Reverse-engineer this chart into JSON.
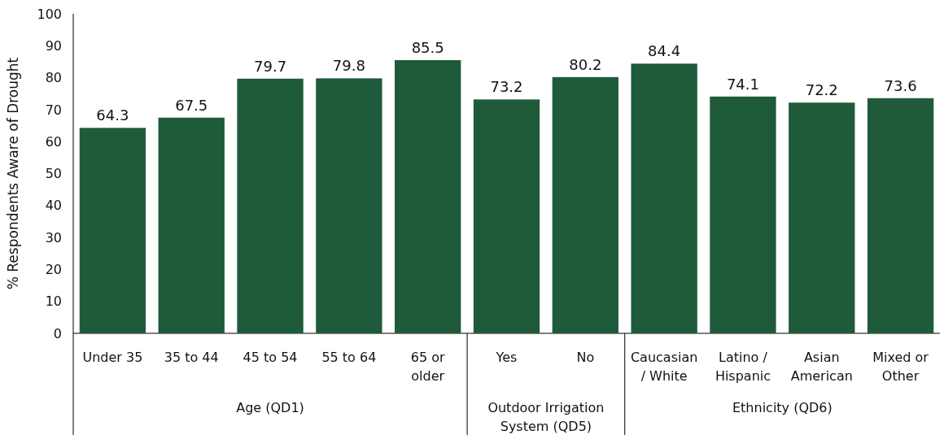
{
  "chart_data": {
    "type": "bar",
    "ylabel": "% Respondents Aware of Drought",
    "categories": [
      "Under 35",
      "35 to 44",
      "45 to 54",
      "55 to 64",
      "65 or older",
      "Yes",
      "No",
      "Caucasian / White",
      "Latino / Hispanic",
      "Asian American",
      "Mixed or Other"
    ],
    "values": [
      64.3,
      67.5,
      79.7,
      79.8,
      85.5,
      73.2,
      80.2,
      84.4,
      74.1,
      72.2,
      73.6
    ],
    "color": "#1f5a3b",
    "data_labels": true,
    "ylim": [
      0,
      100
    ],
    "yticks": [
      0,
      10,
      20,
      30,
      40,
      50,
      60,
      70,
      80,
      90,
      100
    ],
    "annotations": [
      "Age (QD1)",
      "Outdoor Irrigation System (QD5)",
      "Ethnicity (QD6)"
    ]
  }
}
